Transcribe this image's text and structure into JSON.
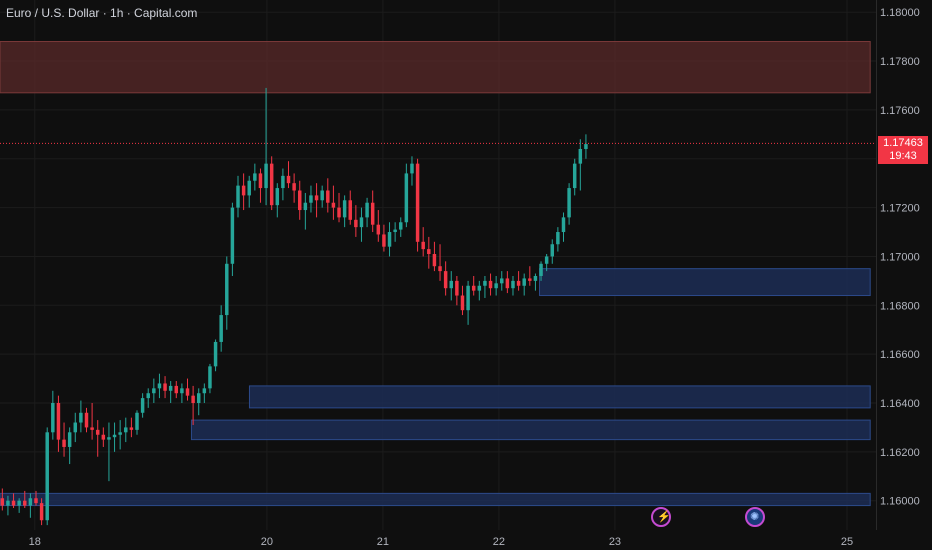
{
  "header": {
    "title": "Euro / U.S. Dollar · 1h · Capital.com"
  },
  "last_price": {
    "value": "1.17463",
    "countdown": "19:43",
    "color": "#f23645"
  },
  "colors": {
    "up": "#26a69a",
    "down": "#f23645",
    "supply_zone": "#5a2a2a",
    "demand_zone": "#1c2d55"
  },
  "events": [
    {
      "icon": "lightning-icon"
    },
    {
      "icon": "globe-flag-icon"
    }
  ],
  "chart_data": {
    "type": "candlestick",
    "title": "Euro / U.S. Dollar · 1h · Capital.com",
    "y_ticks": [
      "1.18000",
      "1.17800",
      "1.17600",
      "1.17400",
      "1.17200",
      "1.17000",
      "1.16800",
      "1.16600",
      "1.16400",
      "1.16200",
      "1.16000"
    ],
    "x_ticks": [
      {
        "label": "18",
        "x": 18.0
      },
      {
        "label": "20",
        "x": 20.0
      },
      {
        "label": "21",
        "x": 21.0
      },
      {
        "label": "22",
        "x": 22.0
      },
      {
        "label": "23",
        "x": 23.0
      },
      {
        "label": "25",
        "x": 25.0
      }
    ],
    "ylim": [
      1.1588,
      1.1805
    ],
    "xlim": [
      17.7,
      25.25
    ],
    "grid": true,
    "zones": [
      {
        "kind": "supply",
        "x0": 17.7,
        "x1": 25.2,
        "y0": 1.1767,
        "y1": 1.1788
      },
      {
        "kind": "demand",
        "x0": 22.35,
        "x1": 25.2,
        "y0": 1.1684,
        "y1": 1.1695
      },
      {
        "kind": "demand",
        "x0": 19.85,
        "x1": 25.2,
        "y0": 1.1638,
        "y1": 1.1647
      },
      {
        "kind": "demand",
        "x0": 19.35,
        "x1": 25.2,
        "y0": 1.1625,
        "y1": 1.1633
      },
      {
        "kind": "demand",
        "x0": 17.7,
        "x1": 25.2,
        "y0": 1.1598,
        "y1": 1.1603
      }
    ],
    "candles": [
      [
        1.1601,
        1.1605,
        1.1596,
        1.1598
      ],
      [
        1.1598,
        1.1602,
        1.1594,
        1.16
      ],
      [
        1.16,
        1.1603,
        1.1597,
        1.1598
      ],
      [
        1.1598,
        1.1601,
        1.1595,
        1.16
      ],
      [
        1.16,
        1.1604,
        1.1597,
        1.1598
      ],
      [
        1.1598,
        1.1603,
        1.1593,
        1.1601
      ],
      [
        1.1601,
        1.1604,
        1.1598,
        1.1599
      ],
      [
        1.1599,
        1.1601,
        1.159,
        1.1592
      ],
      [
        1.1592,
        1.163,
        1.159,
        1.1628
      ],
      [
        1.1628,
        1.1645,
        1.1625,
        1.164
      ],
      [
        1.164,
        1.1643,
        1.162,
        1.1625
      ],
      [
        1.1625,
        1.1632,
        1.1618,
        1.1622
      ],
      [
        1.1622,
        1.163,
        1.1615,
        1.1628
      ],
      [
        1.1628,
        1.1636,
        1.1624,
        1.1632
      ],
      [
        1.1632,
        1.1641,
        1.1628,
        1.1636
      ],
      [
        1.1636,
        1.1638,
        1.1628,
        1.163
      ],
      [
        1.163,
        1.164,
        1.1625,
        1.1629
      ],
      [
        1.1629,
        1.1633,
        1.1618,
        1.1627
      ],
      [
        1.1627,
        1.163,
        1.1622,
        1.1625
      ],
      [
        1.1625,
        1.1632,
        1.1608,
        1.1626
      ],
      [
        1.1626,
        1.1632,
        1.162,
        1.1627
      ],
      [
        1.1627,
        1.1633,
        1.1621,
        1.1628
      ],
      [
        1.1628,
        1.1634,
        1.1624,
        1.163
      ],
      [
        1.163,
        1.1634,
        1.1626,
        1.1629
      ],
      [
        1.1629,
        1.1637,
        1.1627,
        1.1636
      ],
      [
        1.1636,
        1.1644,
        1.1634,
        1.1642
      ],
      [
        1.1642,
        1.1646,
        1.1638,
        1.1644
      ],
      [
        1.1644,
        1.165,
        1.164,
        1.1646
      ],
      [
        1.1646,
        1.1652,
        1.1642,
        1.1648
      ],
      [
        1.1648,
        1.1651,
        1.1642,
        1.1645
      ],
      [
        1.1645,
        1.1649,
        1.164,
        1.1647
      ],
      [
        1.1647,
        1.1649,
        1.1642,
        1.1644
      ],
      [
        1.1644,
        1.1648,
        1.164,
        1.1646
      ],
      [
        1.1646,
        1.165,
        1.1641,
        1.1643
      ],
      [
        1.1643,
        1.1647,
        1.1631,
        1.164
      ],
      [
        1.164,
        1.1646,
        1.1635,
        1.1644
      ],
      [
        1.1644,
        1.1648,
        1.164,
        1.1646
      ],
      [
        1.1646,
        1.1656,
        1.1644,
        1.1655
      ],
      [
        1.1655,
        1.1666,
        1.1653,
        1.1665
      ],
      [
        1.1665,
        1.168,
        1.1661,
        1.1676
      ],
      [
        1.1676,
        1.17,
        1.167,
        1.1697
      ],
      [
        1.1697,
        1.1722,
        1.1692,
        1.172
      ],
      [
        1.172,
        1.1733,
        1.1716,
        1.1729
      ],
      [
        1.1729,
        1.1734,
        1.1719,
        1.1725
      ],
      [
        1.1725,
        1.1733,
        1.172,
        1.1731
      ],
      [
        1.1731,
        1.1738,
        1.1727,
        1.1734
      ],
      [
        1.1734,
        1.1736,
        1.1722,
        1.1728
      ],
      [
        1.1728,
        1.1769,
        1.1721,
        1.1738
      ],
      [
        1.1738,
        1.1741,
        1.1719,
        1.1721
      ],
      [
        1.1721,
        1.173,
        1.1716,
        1.1728
      ],
      [
        1.1728,
        1.1736,
        1.1723,
        1.1733
      ],
      [
        1.1733,
        1.1739,
        1.1728,
        1.173
      ],
      [
        1.173,
        1.1734,
        1.1722,
        1.1727
      ],
      [
        1.1727,
        1.1731,
        1.1715,
        1.1719
      ],
      [
        1.1719,
        1.1726,
        1.1711,
        1.1722
      ],
      [
        1.1722,
        1.1729,
        1.1718,
        1.1725
      ],
      [
        1.1725,
        1.173,
        1.1716,
        1.1723
      ],
      [
        1.1723,
        1.1729,
        1.172,
        1.1727
      ],
      [
        1.1727,
        1.1732,
        1.1718,
        1.1722
      ],
      [
        1.1722,
        1.1729,
        1.1715,
        1.172
      ],
      [
        1.172,
        1.1726,
        1.1714,
        1.1716
      ],
      [
        1.1716,
        1.1725,
        1.1712,
        1.1723
      ],
      [
        1.1723,
        1.1727,
        1.1713,
        1.1715
      ],
      [
        1.1715,
        1.1721,
        1.1708,
        1.1712
      ],
      [
        1.1712,
        1.172,
        1.1706,
        1.1716
      ],
      [
        1.1716,
        1.1724,
        1.1712,
        1.1722
      ],
      [
        1.1722,
        1.1727,
        1.171,
        1.1713
      ],
      [
        1.1713,
        1.1719,
        1.1706,
        1.1709
      ],
      [
        1.1709,
        1.1713,
        1.1702,
        1.1704
      ],
      [
        1.1704,
        1.1714,
        1.17,
        1.171
      ],
      [
        1.171,
        1.1714,
        1.1706,
        1.1711
      ],
      [
        1.1711,
        1.1716,
        1.1708,
        1.1714
      ],
      [
        1.1714,
        1.1738,
        1.1712,
        1.1734
      ],
      [
        1.1734,
        1.1741,
        1.1729,
        1.1738
      ],
      [
        1.1738,
        1.174,
        1.1702,
        1.1706
      ],
      [
        1.1706,
        1.1712,
        1.17,
        1.1703
      ],
      [
        1.1703,
        1.1708,
        1.1695,
        1.1701
      ],
      [
        1.1701,
        1.1706,
        1.1694,
        1.1696
      ],
      [
        1.1696,
        1.1705,
        1.169,
        1.1694
      ],
      [
        1.1694,
        1.1698,
        1.1684,
        1.1687
      ],
      [
        1.1687,
        1.1694,
        1.1682,
        1.169
      ],
      [
        1.169,
        1.1692,
        1.168,
        1.1684
      ],
      [
        1.1684,
        1.1688,
        1.1676,
        1.1678
      ],
      [
        1.1678,
        1.169,
        1.1672,
        1.1688
      ],
      [
        1.1688,
        1.1692,
        1.1684,
        1.1686
      ],
      [
        1.1686,
        1.169,
        1.1682,
        1.1688
      ],
      [
        1.1688,
        1.1692,
        1.1683,
        1.169
      ],
      [
        1.169,
        1.1693,
        1.1684,
        1.1687
      ],
      [
        1.1687,
        1.1692,
        1.1684,
        1.1689
      ],
      [
        1.1689,
        1.1694,
        1.1686,
        1.1691
      ],
      [
        1.1691,
        1.1694,
        1.1685,
        1.1687
      ],
      [
        1.1687,
        1.1692,
        1.1684,
        1.169
      ],
      [
        1.169,
        1.1694,
        1.1686,
        1.1688
      ],
      [
        1.1688,
        1.1693,
        1.1684,
        1.1691
      ],
      [
        1.1691,
        1.1696,
        1.1688,
        1.169
      ],
      [
        1.169,
        1.1693,
        1.1686,
        1.1692
      ],
      [
        1.1692,
        1.1698,
        1.169,
        1.1697
      ],
      [
        1.1697,
        1.1701,
        1.1694,
        1.17
      ],
      [
        1.17,
        1.1707,
        1.1697,
        1.1705
      ],
      [
        1.1705,
        1.1712,
        1.1702,
        1.171
      ],
      [
        1.171,
        1.1718,
        1.1706,
        1.1716
      ],
      [
        1.1716,
        1.173,
        1.1713,
        1.1728
      ],
      [
        1.1728,
        1.174,
        1.1725,
        1.1738
      ],
      [
        1.1738,
        1.1748,
        1.1727,
        1.1744
      ],
      [
        1.1744,
        1.175,
        1.174,
        1.1746
      ]
    ]
  }
}
